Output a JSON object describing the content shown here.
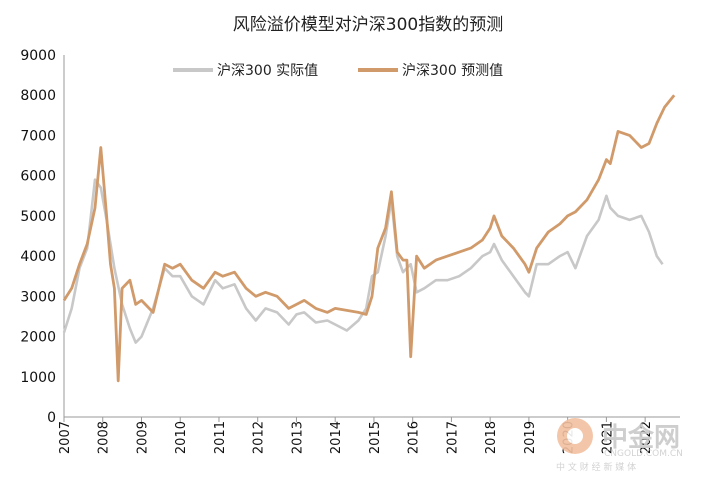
{
  "chart_data": {
    "type": "line",
    "title": "风险溢价模型对沪深300指数的预测",
    "xlabel": "",
    "ylabel": "",
    "ylim": [
      0,
      9000
    ],
    "xlim": [
      2007,
      2022.9
    ],
    "y_ticks": [
      "0",
      "1000",
      "2000",
      "3000",
      "4000",
      "5000",
      "6000",
      "7000",
      "8000",
      "9000"
    ],
    "x_ticks": [
      "2007",
      "2008",
      "2009",
      "2010",
      "2011",
      "2012",
      "2013",
      "2014",
      "2015",
      "2016",
      "2017",
      "2018",
      "2019",
      "2020",
      "2021",
      "2022"
    ],
    "grid": false,
    "legend_position": "top",
    "series": [
      {
        "name": "沪深300 实际值",
        "color": "#c8c8c8",
        "x": [
          2007.0,
          2007.2,
          2007.4,
          2007.6,
          2007.8,
          2007.95,
          2008.1,
          2008.3,
          2008.5,
          2008.7,
          2008.85,
          2009.0,
          2009.3,
          2009.6,
          2009.8,
          2010.0,
          2010.3,
          2010.6,
          2010.9,
          2011.1,
          2011.4,
          2011.7,
          2011.95,
          2012.2,
          2012.5,
          2012.8,
          2013.0,
          2013.2,
          2013.5,
          2013.8,
          2014.0,
          2014.3,
          2014.6,
          2014.8,
          2014.95,
          2015.1,
          2015.3,
          2015.45,
          2015.6,
          2015.75,
          2015.95,
          2016.1,
          2016.3,
          2016.6,
          2016.9,
          2017.2,
          2017.5,
          2017.8,
          2018.0,
          2018.1,
          2018.3,
          2018.6,
          2018.9,
          2019.0,
          2019.2,
          2019.5,
          2019.8,
          2020.0,
          2020.2,
          2020.5,
          2020.8,
          2021.0,
          2021.1,
          2021.3,
          2021.6,
          2021.9,
          2022.1,
          2022.3,
          2022.45
        ],
        "y": [
          2100,
          2700,
          3700,
          4200,
          5900,
          5700,
          4900,
          3700,
          2800,
          2200,
          1850,
          2000,
          2700,
          3700,
          3500,
          3500,
          3000,
          2800,
          3400,
          3200,
          3300,
          2700,
          2400,
          2700,
          2600,
          2300,
          2550,
          2600,
          2350,
          2400,
          2300,
          2150,
          2400,
          2700,
          3500,
          3600,
          4500,
          5400,
          4000,
          3600,
          3800,
          3100,
          3200,
          3400,
          3400,
          3500,
          3700,
          4000,
          4100,
          4300,
          3900,
          3500,
          3100,
          3000,
          3800,
          3800,
          4000,
          4100,
          3700,
          4500,
          4900,
          5500,
          5200,
          5000,
          4900,
          5000,
          4600,
          4000,
          3800
        ]
      },
      {
        "name": "沪深300 预测值",
        "color": "#d19a6a",
        "x": [
          2007.0,
          2007.2,
          2007.4,
          2007.6,
          2007.8,
          2007.95,
          2008.1,
          2008.2,
          2008.3,
          2008.4,
          2008.5,
          2008.7,
          2008.85,
          2009.0,
          2009.3,
          2009.6,
          2009.8,
          2010.0,
          2010.3,
          2010.6,
          2010.9,
          2011.1,
          2011.4,
          2011.7,
          2011.95,
          2012.2,
          2012.5,
          2012.8,
          2013.0,
          2013.2,
          2013.5,
          2013.8,
          2014.0,
          2014.3,
          2014.6,
          2014.8,
          2014.95,
          2015.1,
          2015.3,
          2015.45,
          2015.6,
          2015.75,
          2015.85,
          2015.95,
          2016.1,
          2016.3,
          2016.6,
          2016.9,
          2017.2,
          2017.5,
          2017.8,
          2018.0,
          2018.1,
          2018.3,
          2018.6,
          2018.9,
          2019.0,
          2019.2,
          2019.5,
          2019.8,
          2020.0,
          2020.2,
          2020.5,
          2020.8,
          2021.0,
          2021.1,
          2021.3,
          2021.6,
          2021.9,
          2022.1,
          2022.3,
          2022.5,
          2022.75
        ],
        "y": [
          2900,
          3200,
          3800,
          4300,
          5200,
          6700,
          5000,
          3800,
          3200,
          900,
          3200,
          3400,
          2800,
          2900,
          2600,
          3800,
          3700,
          3800,
          3400,
          3200,
          3600,
          3500,
          3600,
          3200,
          3000,
          3100,
          3000,
          2700,
          2800,
          2900,
          2700,
          2600,
          2700,
          2650,
          2600,
          2550,
          3000,
          4200,
          4700,
          5600,
          4100,
          3900,
          3900,
          1500,
          4000,
          3700,
          3900,
          4000,
          4100,
          4200,
          4400,
          4700,
          5000,
          4500,
          4200,
          3800,
          3600,
          4200,
          4600,
          4800,
          5000,
          5100,
          5400,
          5900,
          6400,
          6300,
          7100,
          7000,
          6700,
          6800,
          7300,
          7700,
          8000
        ]
      }
    ]
  },
  "watermark": {
    "logo_text": "中金网",
    "site_text": "CNGOLD.COM.CN",
    "slogan": "中 文 财 经 新 媒 体"
  }
}
